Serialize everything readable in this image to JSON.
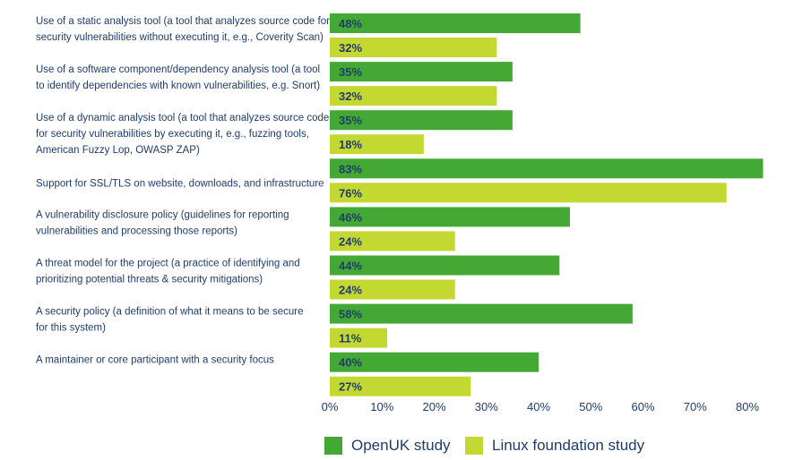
{
  "chart_data": {
    "type": "bar",
    "orientation": "horizontal",
    "categories": [
      [
        "Use of a static analysis tool (a tool that analyzes source code for",
        "security vulnerabilities without executing it, e.g., Coverity Scan)"
      ],
      [
        "Use of a software component/dependency analysis tool (a tool",
        "to identify dependencies with known vulnerabilities, e.g. Snort)"
      ],
      [
        "Use of a dynamic analysis tool (a tool that analyzes source code",
        "for security vulnerabilities by executing it, e.g., fuzzing tools,",
        "American Fuzzy Lop, OWASP ZAP)"
      ],
      [
        "Support for SSL/TLS on website, downloads, and infrastructure"
      ],
      [
        "A vulnerability disclosure policy (guidelines for reporting",
        "vulnerabilities and processing those reports)"
      ],
      [
        "A threat model for the project (a practice of identifying and",
        "prioritizing potential threats & security mitigations)"
      ],
      [
        "A security policy (a definition of what it means to be secure",
        "for this system)"
      ],
      [
        "A maintainer or core participant with a security focus"
      ]
    ],
    "series": [
      {
        "name": "OpenUK study",
        "color": "#44a834",
        "values": [
          48,
          35,
          35,
          83,
          46,
          44,
          58,
          40
        ],
        "labels": [
          "48%",
          "35%",
          "35%",
          "83%",
          "46%",
          "44%",
          "58%",
          "40%"
        ]
      },
      {
        "name": "Linux foundation study",
        "color": "#c4d832",
        "values": [
          32,
          32,
          18,
          76,
          24,
          24,
          11,
          27
        ],
        "labels": [
          "32%",
          "32%",
          "18%",
          "76%",
          "24%",
          "24%",
          "11%",
          "27%"
        ]
      }
    ],
    "xlim": [
      0,
      80
    ],
    "xticks": [
      "0%",
      "10%",
      "20%",
      "30%",
      "40%",
      "50%",
      "60%",
      "70%",
      "80%"
    ],
    "grid": false,
    "legend_position": "bottom",
    "label_color": "#1f3d6b"
  }
}
